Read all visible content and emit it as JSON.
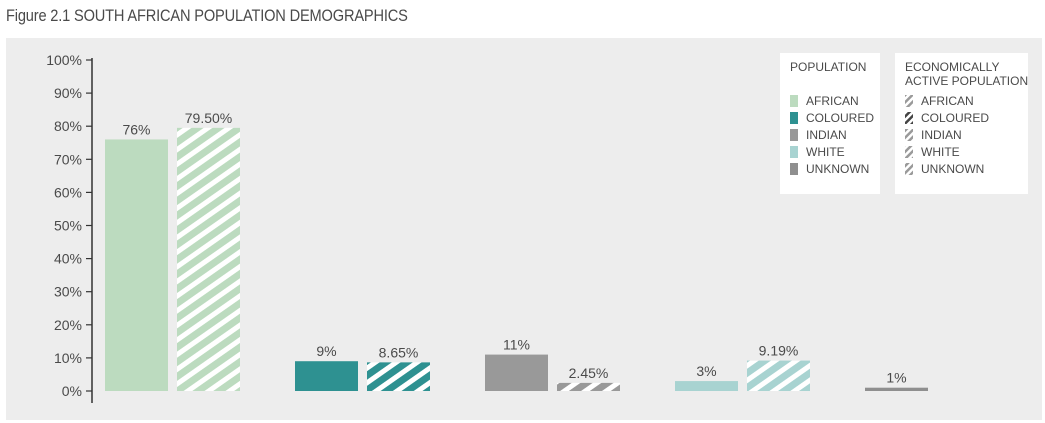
{
  "figure": {
    "title": "Figure 2.1 SOUTH AFRICAN POPULATION DEMOGRAPHICS"
  },
  "chart_data": {
    "type": "bar",
    "title": "Figure 2.1 SOUTH AFRICAN POPULATION DEMOGRAPHICS",
    "categories": [
      "AFRICAN",
      "COLOURED",
      "INDIAN",
      "WHITE",
      "UNKNOWN"
    ],
    "ylim": [
      0,
      100
    ],
    "yticks": [
      0,
      10,
      20,
      30,
      40,
      50,
      60,
      70,
      80,
      90,
      100
    ],
    "ytick_suffix": "%",
    "grid": false,
    "legend_placement": "top-right",
    "category_colors": [
      "#bcdbbf",
      "#2e9191",
      "#999999",
      "#a8d3d1",
      "#8f8f8f"
    ],
    "series": [
      {
        "name": "POPULATION",
        "pattern": "solid",
        "values": [
          76,
          9,
          11,
          3,
          1
        ],
        "labels": [
          "76%",
          "9%",
          "11%",
          "3%",
          "1%"
        ]
      },
      {
        "name": "ECONOMICALLY ACTIVE POPULATION",
        "pattern": "hatched",
        "values": [
          79.5,
          8.65,
          2.45,
          9.19,
          null
        ],
        "labels": [
          "79.50%",
          "8.65%",
          "2.45%",
          "9.19%",
          ""
        ]
      }
    ],
    "legend": {
      "population": {
        "title": [
          "POPULATION"
        ],
        "items": [
          "AFRICAN",
          "COLOURED",
          "INDIAN",
          "WHITE",
          "UNKNOWN"
        ]
      },
      "active": {
        "title": [
          "ECONOMICALLY",
          "ACTIVE POPULATION"
        ],
        "items": [
          "AFRICAN",
          "COLOURED",
          "INDIAN",
          "WHITE",
          "UNKNOWN"
        ]
      }
    }
  }
}
